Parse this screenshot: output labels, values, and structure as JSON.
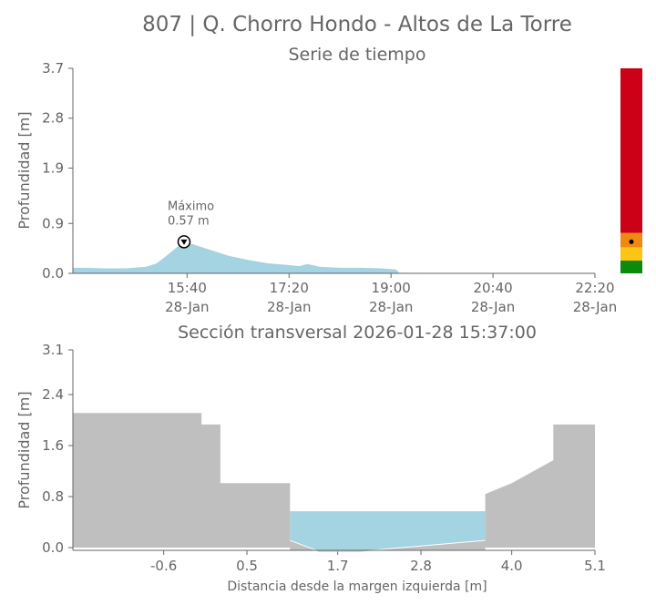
{
  "title": "807 | Q. Chorro Hondo - Altos de La Torre",
  "colors": {
    "water": "#a4d3e1",
    "terrain": "#bfbfbf",
    "axis": "#666666",
    "alert_red": "#cc0016",
    "alert_orange": "#ee8a10",
    "alert_yellow": "#fcc515",
    "alert_green": "#0c8a0c"
  },
  "chart_data": [
    {
      "type": "area",
      "title": "Serie de tiempo",
      "ylabel": "Profundidad [m]",
      "xlabel": "",
      "yticks": [
        "0.0",
        "0.9",
        "1.9",
        "2.8",
        "3.7"
      ],
      "ytick_values": [
        0.0,
        0.9,
        1.9,
        2.8,
        3.7
      ],
      "ylim": [
        0,
        3.7
      ],
      "xlim": [
        "13:48",
        "22:20"
      ],
      "xticks": [
        {
          "time": "15:40",
          "date": "28-Jan"
        },
        {
          "time": "17:20",
          "date": "28-Jan"
        },
        {
          "time": "19:00",
          "date": "28-Jan"
        },
        {
          "time": "20:40",
          "date": "28-Jan"
        },
        {
          "time": "22:20",
          "date": "28-Jan"
        }
      ],
      "series": [
        {
          "values": [
            {
              "t": "13:48",
              "y": 0.1
            },
            {
              "t": "14:00",
              "y": 0.1
            },
            {
              "t": "14:20",
              "y": 0.09
            },
            {
              "t": "14:40",
              "y": 0.09
            },
            {
              "t": "15:00",
              "y": 0.12
            },
            {
              "t": "15:10",
              "y": 0.18
            },
            {
              "t": "15:20",
              "y": 0.32
            },
            {
              "t": "15:30",
              "y": 0.47
            },
            {
              "t": "15:37",
              "y": 0.57
            },
            {
              "t": "15:45",
              "y": 0.53
            },
            {
              "t": "16:00",
              "y": 0.44
            },
            {
              "t": "16:20",
              "y": 0.32
            },
            {
              "t": "16:40",
              "y": 0.24
            },
            {
              "t": "17:00",
              "y": 0.18
            },
            {
              "t": "17:20",
              "y": 0.15
            },
            {
              "t": "17:30",
              "y": 0.13
            },
            {
              "t": "17:38",
              "y": 0.17
            },
            {
              "t": "17:50",
              "y": 0.12
            },
            {
              "t": "18:10",
              "y": 0.1
            },
            {
              "t": "18:30",
              "y": 0.1
            },
            {
              "t": "18:50",
              "y": 0.09
            },
            {
              "t": "19:05",
              "y": 0.07
            },
            {
              "t": "19:08",
              "y": 0.01
            },
            {
              "t": "22:20",
              "y": 0.0
            }
          ]
        }
      ],
      "annotation": {
        "label": "Máximo",
        "value": "0.57 m",
        "t": "15:37",
        "y": 0.57
      },
      "level_bar": {
        "segments": [
          {
            "color": "#0c8a0c",
            "from": 0.0,
            "to": 0.23
          },
          {
            "color": "#fcc515",
            "from": 0.23,
            "to": 0.47
          },
          {
            "color": "#ee8a10",
            "from": 0.47,
            "to": 0.73
          },
          {
            "color": "#cc0016",
            "from": 0.73,
            "to": 3.7
          }
        ],
        "marker_value": 0.57
      }
    },
    {
      "type": "area",
      "title": "Sección transversal 2026-01-28 15:37:00",
      "xlabel": "Distancia desde la margen izquierda [m]",
      "ylabel": "Profundidad [m]",
      "xticks": [
        "-0.6",
        "0.5",
        "1.7",
        "2.8",
        "4.0",
        "5.1"
      ],
      "xtick_values": [
        -0.6,
        0.5,
        1.7,
        2.8,
        4.0,
        5.1
      ],
      "yticks": [
        "0.0",
        "0.8",
        "1.6",
        "2.4",
        "3.1"
      ],
      "ytick_values": [
        0.0,
        0.8,
        1.6,
        2.4,
        3.1
      ],
      "xlim": [
        -1.8,
        5.1
      ],
      "ylim": [
        0,
        3.1
      ],
      "terrain": [
        {
          "x": -1.8,
          "y": 2.11
        },
        {
          "x": -0.1,
          "y": 2.11
        },
        {
          "x": -0.1,
          "y": 1.93
        },
        {
          "x": 0.15,
          "y": 1.93
        },
        {
          "x": 0.15,
          "y": 1.01
        },
        {
          "x": 1.07,
          "y": 1.01
        },
        {
          "x": 1.07,
          "y": 0.12
        },
        {
          "x": 1.45,
          "y": -0.05
        },
        {
          "x": 2.0,
          "y": -0.05
        },
        {
          "x": 3.65,
          "y": 0.12
        },
        {
          "x": 3.65,
          "y": 0.84
        },
        {
          "x": 4.0,
          "y": 1.01
        },
        {
          "x": 4.55,
          "y": 1.37
        },
        {
          "x": 4.55,
          "y": 1.93
        },
        {
          "x": 5.1,
          "y": 1.93
        }
      ],
      "water_level": 0.57,
      "water_extent": [
        1.07,
        3.65
      ]
    }
  ]
}
